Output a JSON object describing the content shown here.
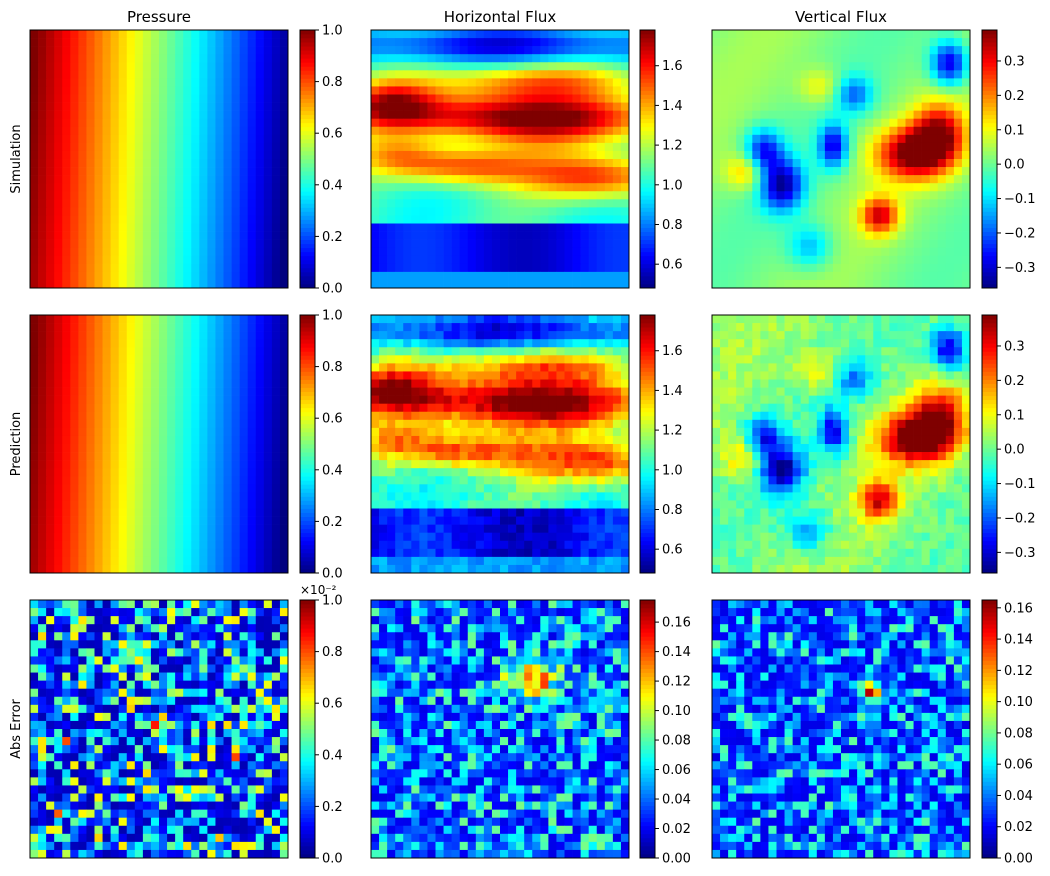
{
  "figure": {
    "colormap": "jet",
    "jet_stops": [
      "#00007f",
      "#0000ff",
      "#007fff",
      "#00ffff",
      "#7fff7f",
      "#ffff00",
      "#ff7f00",
      "#ff0000",
      "#7f0000"
    ],
    "grid_resolution": 32
  },
  "chart_data": [
    {
      "type": "heatmap",
      "row": "Simulation",
      "title": "Pressure",
      "ylabel": "Simulation",
      "field": "pressure",
      "colorbar": {
        "range": [
          0.0,
          1.0
        ],
        "ticks": [
          0.0,
          0.2,
          0.4,
          0.6,
          0.8,
          1.0
        ],
        "tick_labels": [
          "0.0",
          "0.2",
          "0.4",
          "0.6",
          "0.8",
          "1.0"
        ],
        "offset": ""
      }
    },
    {
      "type": "heatmap",
      "row": "Simulation",
      "title": "Horizontal Flux",
      "ylabel": "",
      "field": "hflux",
      "colorbar": {
        "range": [
          0.48,
          1.78
        ],
        "ticks": [
          0.6,
          0.8,
          1.0,
          1.2,
          1.4,
          1.6
        ],
        "tick_labels": [
          "0.6",
          "0.8",
          "1.0",
          "1.2",
          "1.4",
          "1.6"
        ],
        "offset": ""
      }
    },
    {
      "type": "heatmap",
      "row": "Simulation",
      "title": "Vertical Flux",
      "ylabel": "",
      "field": "vflux",
      "colorbar": {
        "range": [
          -0.36,
          0.39
        ],
        "ticks": [
          -0.3,
          -0.2,
          -0.1,
          0.0,
          0.1,
          0.2,
          0.3
        ],
        "tick_labels": [
          "−0.3",
          "−0.2",
          "−0.1",
          "0.0",
          "0.1",
          "0.2",
          "0.3"
        ],
        "offset": ""
      }
    },
    {
      "type": "heatmap",
      "row": "Prediction",
      "title": "",
      "ylabel": "Prediction",
      "field": "pressure",
      "colorbar": {
        "range": [
          0.0,
          1.0
        ],
        "ticks": [
          0.0,
          0.2,
          0.4,
          0.6,
          0.8,
          1.0
        ],
        "tick_labels": [
          "0.0",
          "0.2",
          "0.4",
          "0.6",
          "0.8",
          "1.0"
        ],
        "offset": ""
      }
    },
    {
      "type": "heatmap",
      "row": "Prediction",
      "title": "",
      "ylabel": "",
      "field": "hflux",
      "colorbar": {
        "range": [
          0.48,
          1.78
        ],
        "ticks": [
          0.6,
          0.8,
          1.0,
          1.2,
          1.4,
          1.6
        ],
        "tick_labels": [
          "0.6",
          "0.8",
          "1.0",
          "1.2",
          "1.4",
          "1.6"
        ],
        "offset": ""
      }
    },
    {
      "type": "heatmap",
      "row": "Prediction",
      "title": "",
      "ylabel": "",
      "field": "vflux",
      "colorbar": {
        "range": [
          -0.36,
          0.39
        ],
        "ticks": [
          -0.3,
          -0.2,
          -0.1,
          0.0,
          0.1,
          0.2,
          0.3
        ],
        "tick_labels": [
          "−0.3",
          "−0.2",
          "−0.1",
          "0.0",
          "0.1",
          "0.2",
          "0.3"
        ],
        "offset": ""
      }
    },
    {
      "type": "heatmap",
      "row": "Abs Error",
      "title": "",
      "ylabel": "Abs Error",
      "field": "err_pressure",
      "colorbar": {
        "range": [
          0.0,
          1.0
        ],
        "ticks": [
          0.0,
          0.2,
          0.4,
          0.6,
          0.8,
          1.0
        ],
        "tick_labels": [
          "0.0",
          "0.2",
          "0.4",
          "0.6",
          "0.8",
          "1.0"
        ],
        "offset": "×10⁻²"
      }
    },
    {
      "type": "heatmap",
      "row": "Abs Error",
      "title": "",
      "ylabel": "",
      "field": "err_hflux",
      "colorbar": {
        "range": [
          0.0,
          0.175
        ],
        "ticks": [
          0.0,
          0.02,
          0.04,
          0.06,
          0.08,
          0.1,
          0.12,
          0.14,
          0.16
        ],
        "tick_labels": [
          "0.00",
          "0.02",
          "0.04",
          "0.06",
          "0.08",
          "0.10",
          "0.12",
          "0.14",
          "0.16"
        ],
        "offset": ""
      }
    },
    {
      "type": "heatmap",
      "row": "Abs Error",
      "title": "",
      "ylabel": "",
      "field": "err_vflux",
      "colorbar": {
        "range": [
          0.0,
          0.165
        ],
        "ticks": [
          0.0,
          0.02,
          0.04,
          0.06,
          0.08,
          0.1,
          0.12,
          0.14,
          0.16
        ],
        "tick_labels": [
          "0.00",
          "0.02",
          "0.04",
          "0.06",
          "0.08",
          "0.10",
          "0.12",
          "0.14",
          "0.16"
        ],
        "offset": ""
      }
    }
  ]
}
